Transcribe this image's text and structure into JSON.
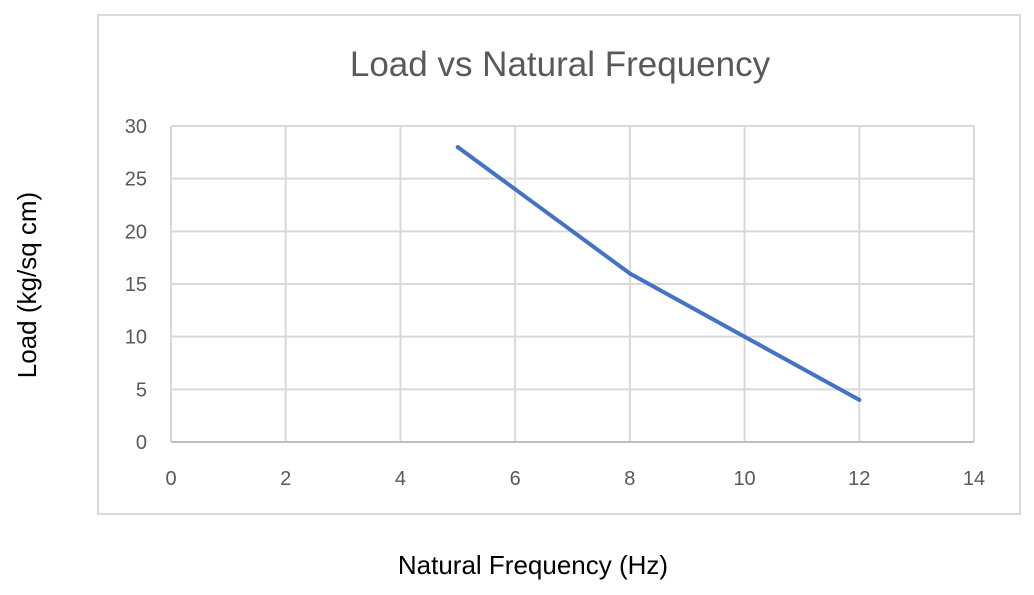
{
  "chart_data": {
    "type": "line",
    "title": "Load vs Natural Frequency",
    "xlabel": "Natural Frequency (Hz)",
    "ylabel": "Load (kg/sq cm)",
    "xlim": [
      0,
      14
    ],
    "ylim": [
      0,
      30
    ],
    "x_ticks": [
      0,
      2,
      4,
      6,
      8,
      10,
      12,
      14
    ],
    "y_ticks": [
      0,
      5,
      10,
      15,
      20,
      25,
      30
    ],
    "grid": true,
    "legend": "none",
    "series": [
      {
        "name": "Load",
        "color": "#4472c4",
        "x": [
          5,
          6,
          8,
          10,
          12
        ],
        "y": [
          28,
          24,
          16,
          10,
          4
        ]
      }
    ]
  }
}
